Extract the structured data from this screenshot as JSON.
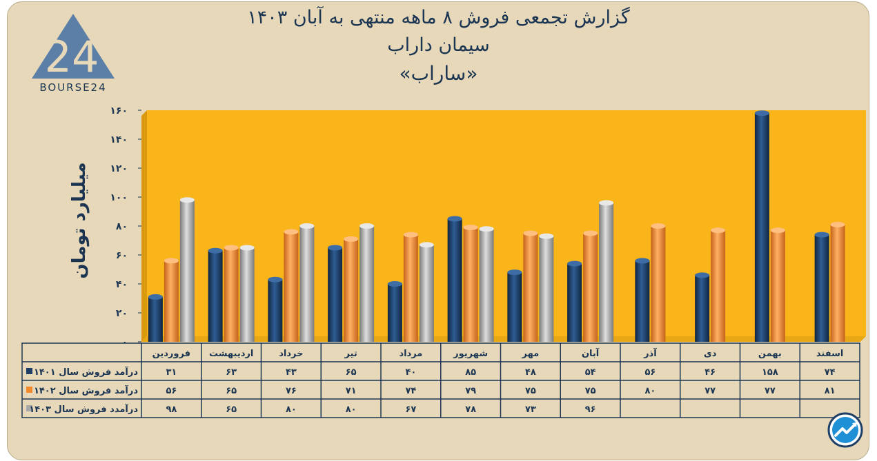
{
  "titles": {
    "line1": "گزارش تجمعی فروش ۸ ماهه منتهی به آبان ۱۴۰۳",
    "line2": "سیمان داراب",
    "line3": "«ساراب»"
  },
  "logo": {
    "text": "BOURSE24",
    "mark": "24"
  },
  "colors": {
    "s1": "#1d3e66",
    "s2": "#f28a2d",
    "s3": "#a8a8a8",
    "plot_bg": "#f9b51a",
    "frame_bg": "#e6d8b8"
  },
  "chart_data": {
    "type": "bar",
    "ylabel": "میلیارد تومان",
    "ylim": [
      0,
      160
    ],
    "yticks": [
      0,
      20,
      40,
      60,
      80,
      100,
      120,
      140,
      160
    ],
    "ytick_labels": [
      "۰",
      "۲۰",
      "۴۰",
      "۶۰",
      "۸۰",
      "۱۰۰",
      "۱۲۰",
      "۱۴۰",
      "۱۶۰"
    ],
    "categories": [
      "فروردین",
      "اردیبهشت",
      "خرداد",
      "تیر",
      "مرداد",
      "شهریور",
      "مهر",
      "آبان",
      "آذر",
      "دی",
      "بهمن",
      "اسفند"
    ],
    "series": [
      {
        "name": "درآمد فروش سال ۱۴۰۱",
        "values": [
          31,
          63,
          43,
          65,
          40,
          85,
          48,
          54,
          56,
          46,
          158,
          74
        ],
        "labels": [
          "۳۱",
          "۶۳",
          "۴۳",
          "۶۵",
          "۴۰",
          "۸۵",
          "۴۸",
          "۵۴",
          "۵۶",
          "۴۶",
          "۱۵۸",
          "۷۴"
        ]
      },
      {
        "name": "درآمد فروش سال ۱۴۰۲",
        "values": [
          56,
          65,
          76,
          71,
          74,
          79,
          75,
          75,
          80,
          77,
          77,
          81
        ],
        "labels": [
          "۵۶",
          "۶۵",
          "۷۶",
          "۷۱",
          "۷۴",
          "۷۹",
          "۷۵",
          "۷۵",
          "۸۰",
          "۷۷",
          "۷۷",
          "۸۱"
        ]
      },
      {
        "name": "درآمدد فروش سال ۱۴۰۳",
        "values": [
          98,
          65,
          80,
          80,
          67,
          78,
          73,
          96,
          null,
          null,
          null,
          null
        ],
        "labels": [
          "۹۸",
          "۶۵",
          "۸۰",
          "۸۰",
          "۶۷",
          "۷۸",
          "۷۳",
          "۹۶",
          "",
          "",
          "",
          ""
        ]
      }
    ],
    "grid": false,
    "legend": "table-left"
  }
}
